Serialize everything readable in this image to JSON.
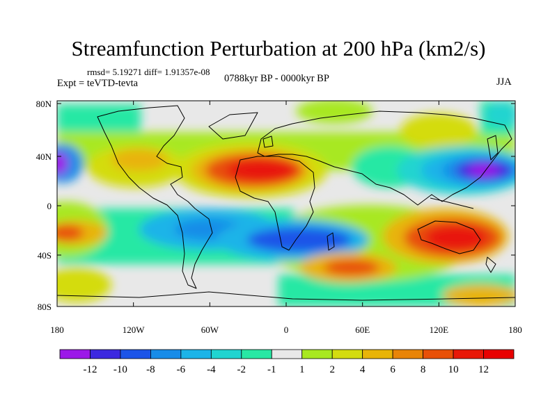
{
  "title": "Streamfunction Perturbation at 200 hPa (km2/s)",
  "stats": "rmsd= 5.19271 diff= 1.91357e-08",
  "experiment": "Expt = teVTD-tevta",
  "period": "0788kyr BP - 0000kyr BP",
  "season": "JJA",
  "map": {
    "projection": "cylindrical equidistant",
    "lon_ticks": [
      "180",
      "120W",
      "60W",
      "0",
      "60E",
      "120E",
      "180"
    ],
    "lat_ticks": [
      "80N",
      "40N",
      "0",
      "40S",
      "80S"
    ],
    "lon_range": [
      -180,
      180
    ],
    "lat_range": [
      -90,
      90
    ]
  },
  "colorbar": {
    "labels": [
      "-12",
      "-10",
      "-8",
      "-6",
      "-4",
      "-2",
      "-1",
      "1",
      "2",
      "4",
      "6",
      "8",
      "10",
      "12"
    ],
    "colors": [
      "#9c18e8",
      "#3c28e0",
      "#1c54e8",
      "#188ce8",
      "#1cb4e8",
      "#20d4d0",
      "#28e8a4",
      "#e8e8e8",
      "#a8e820",
      "#d4dc10",
      "#e8b408",
      "#e88408",
      "#e85008",
      "#e81808",
      "#e80000"
    ]
  }
}
